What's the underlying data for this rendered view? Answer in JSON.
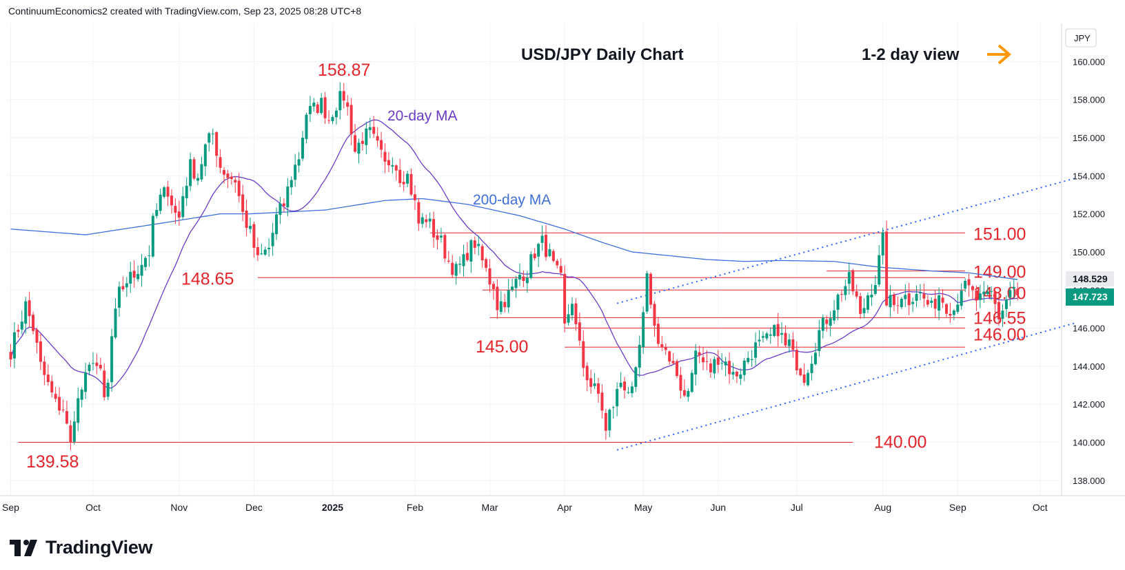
{
  "header": {
    "credit": "ContinuumEconomics2 created with TradingView.com, Sep 23, 2025 08:28 UTC+8"
  },
  "brand": {
    "name": "TradingView"
  },
  "chart_data": {
    "type": "candlestick",
    "title": "USD/JPY Daily Chart",
    "view_label": "1-2 day view",
    "currency_label": "JPY",
    "last_price": "147.723",
    "ma200_value": "148.529",
    "y_ticks": [
      "160.000",
      "158.000",
      "156.000",
      "154.000",
      "152.000",
      "150.000",
      "148.000",
      "146.000",
      "144.000",
      "142.000",
      "140.000",
      "138.000"
    ],
    "ylim": [
      137.2,
      162.0
    ],
    "x_ticks": [
      {
        "label": "Sep",
        "i": 0
      },
      {
        "label": "Oct",
        "i": 22
      },
      {
        "label": "Nov",
        "i": 45
      },
      {
        "label": "Dec",
        "i": 65
      },
      {
        "label": "2025",
        "i": 86,
        "bold": true
      },
      {
        "label": "Feb",
        "i": 108
      },
      {
        "label": "Mar",
        "i": 128
      },
      {
        "label": "Apr",
        "i": 148
      },
      {
        "label": "May",
        "i": 169
      },
      {
        "label": "Jun",
        "i": 189
      },
      {
        "label": "Jul",
        "i": 210
      },
      {
        "label": "Aug",
        "i": 233
      },
      {
        "label": "Sep",
        "i": 253
      },
      {
        "label": "Oct",
        "i": 275
      }
    ],
    "price_keys": [
      [
        0,
        144.8
      ],
      [
        2,
        146.0
      ],
      [
        4,
        147.2
      ],
      [
        6,
        146.0
      ],
      [
        8,
        144.0
      ],
      [
        10,
        143.0
      ],
      [
        12,
        142.0
      ],
      [
        14,
        141.8
      ],
      [
        16,
        139.8
      ],
      [
        17,
        141.5
      ],
      [
        19,
        142.8
      ],
      [
        21,
        143.8
      ],
      [
        22,
        144.5
      ],
      [
        24,
        143.5
      ],
      [
        25,
        142.2
      ],
      [
        26,
        143.0
      ],
      [
        27,
        145.5
      ],
      [
        29,
        147.8
      ],
      [
        31,
        148.5
      ],
      [
        33,
        148.8
      ],
      [
        35,
        149.5
      ],
      [
        37,
        150.0
      ],
      [
        38,
        151.5
      ],
      [
        40,
        152.8
      ],
      [
        42,
        153.3
      ],
      [
        44,
        152.0
      ],
      [
        45,
        151.8
      ],
      [
        46,
        153.0
      ],
      [
        48,
        154.5
      ],
      [
        50,
        154.0
      ],
      [
        52,
        155.5
      ],
      [
        54,
        156.2
      ],
      [
        56,
        154.5
      ],
      [
        58,
        154.0
      ],
      [
        60,
        153.8
      ],
      [
        62,
        152.0
      ],
      [
        64,
        151.0
      ],
      [
        66,
        149.5
      ],
      [
        67,
        149.8
      ],
      [
        69,
        150.2
      ],
      [
        71,
        151.8
      ],
      [
        73,
        152.5
      ],
      [
        75,
        154.0
      ],
      [
        77,
        155.0
      ],
      [
        79,
        157.3
      ],
      [
        81,
        157.5
      ],
      [
        83,
        157.8
      ],
      [
        85,
        157.0
      ],
      [
        87,
        157.8
      ],
      [
        89,
        158.2
      ],
      [
        90,
        157.5
      ],
      [
        91,
        156.5
      ],
      [
        92,
        155.3
      ],
      [
        94,
        156.0
      ],
      [
        96,
        156.2
      ],
      [
        98,
        155.5
      ],
      [
        100,
        154.5
      ],
      [
        102,
        155.0
      ],
      [
        104,
        154.0
      ],
      [
        106,
        154.0
      ],
      [
        108,
        152.5
      ],
      [
        109,
        151.5
      ],
      [
        111,
        151.8
      ],
      [
        113,
        151.0
      ],
      [
        115,
        150.5
      ],
      [
        117,
        149.5
      ],
      [
        119,
        149.0
      ],
      [
        121,
        149.5
      ],
      [
        122,
        150.0
      ],
      [
        124,
        150.5
      ],
      [
        126,
        149.5
      ],
      [
        127,
        149.0
      ],
      [
        128,
        148.5
      ],
      [
        129,
        148.3
      ],
      [
        130,
        147.2
      ],
      [
        132,
        147.5
      ],
      [
        134,
        148.0
      ],
      [
        136,
        148.8
      ],
      [
        138,
        149.0
      ],
      [
        140,
        150.0
      ],
      [
        142,
        150.5
      ],
      [
        144,
        149.8
      ],
      [
        145,
        149.2
      ],
      [
        147,
        148.5
      ],
      [
        148,
        146.0
      ],
      [
        149,
        146.8
      ],
      [
        150,
        147.5
      ],
      [
        151,
        146.0
      ],
      [
        152,
        145.0
      ],
      [
        153,
        144.0
      ],
      [
        155,
        143.0
      ],
      [
        157,
        142.5
      ],
      [
        158,
        141.8
      ],
      [
        159,
        140.5
      ],
      [
        160,
        141.5
      ],
      [
        161,
        142.0
      ],
      [
        163,
        143.2
      ],
      [
        165,
        142.8
      ],
      [
        166,
        142.5
      ],
      [
        167,
        143.5
      ],
      [
        168,
        145.0
      ],
      [
        169,
        146.5
      ],
      [
        170,
        148.5
      ],
      [
        171,
        147.5
      ],
      [
        172,
        146.0
      ],
      [
        173,
        145.5
      ],
      [
        174,
        145.0
      ],
      [
        175,
        144.8
      ],
      [
        176,
        144.0
      ],
      [
        178,
        143.5
      ],
      [
        180,
        142.5
      ],
      [
        182,
        143.5
      ],
      [
        183,
        144.8
      ],
      [
        185,
        144.2
      ],
      [
        187,
        143.8
      ],
      [
        189,
        144.5
      ],
      [
        191,
        144.2
      ],
      [
        193,
        143.5
      ],
      [
        195,
        143.8
      ],
      [
        197,
        144.5
      ],
      [
        199,
        145.0
      ],
      [
        201,
        145.2
      ],
      [
        203,
        145.5
      ],
      [
        205,
        146.0
      ],
      [
        206,
        145.5
      ],
      [
        207,
        145.0
      ],
      [
        208,
        145.2
      ],
      [
        209,
        144.5
      ],
      [
        210,
        144.2
      ],
      [
        212,
        143.5
      ],
      [
        214,
        144.5
      ],
      [
        216,
        145.8
      ],
      [
        218,
        146.5
      ],
      [
        220,
        147.2
      ],
      [
        222,
        148.0
      ],
      [
        224,
        148.5
      ],
      [
        225,
        148.0
      ],
      [
        226,
        147.5
      ],
      [
        227,
        146.5
      ],
      [
        229,
        147.8
      ],
      [
        231,
        148.5
      ],
      [
        233,
        150.6
      ],
      [
        234,
        147.5
      ],
      [
        236,
        147.2
      ],
      [
        238,
        147.8
      ],
      [
        240,
        147.5
      ],
      [
        242,
        148.0
      ],
      [
        244,
        147.5
      ],
      [
        246,
        147.0
      ],
      [
        248,
        147.8
      ],
      [
        250,
        147.2
      ],
      [
        252,
        147.0
      ],
      [
        254,
        148.2
      ],
      [
        256,
        148.0
      ],
      [
        258,
        147.5
      ],
      [
        260,
        147.5
      ],
      [
        262,
        147.8
      ],
      [
        264,
        146.6
      ],
      [
        265,
        147.0
      ],
      [
        267,
        148.0
      ],
      [
        268,
        148.1
      ],
      [
        269,
        147.72
      ]
    ],
    "seed": 7,
    "ma_20_label": "20-day MA",
    "ma_200_label": "200-day MA",
    "ma200_keys": [
      [
        0,
        151.2
      ],
      [
        20,
        150.9
      ],
      [
        40,
        151.5
      ],
      [
        56,
        152.0
      ],
      [
        64,
        152.0
      ],
      [
        84,
        152.2
      ],
      [
        100,
        152.7
      ],
      [
        110,
        152.8
      ],
      [
        122,
        152.5
      ],
      [
        136,
        151.9
      ],
      [
        148,
        151.2
      ],
      [
        158,
        150.5
      ],
      [
        166,
        150.0
      ],
      [
        176,
        149.8
      ],
      [
        186,
        149.6
      ],
      [
        196,
        149.5
      ],
      [
        206,
        149.55
      ],
      [
        220,
        149.5
      ],
      [
        232,
        149.2
      ],
      [
        246,
        149.0
      ],
      [
        256,
        148.9
      ],
      [
        269,
        148.55
      ]
    ],
    "levels": [
      {
        "label": "151.00",
        "value": 151.0,
        "from_i": 112
      },
      {
        "label": "149.00",
        "value": 149.0,
        "from_i": 218
      },
      {
        "label": "148.65",
        "value": 148.65,
        "from_i": 66
      },
      {
        "label": "148.00",
        "value": 148.0,
        "from_i": 126
      },
      {
        "label": "146.55",
        "value": 146.55,
        "from_i": 128
      },
      {
        "label": "146.00",
        "value": 146.0,
        "from_i": 148
      },
      {
        "label": "145.00",
        "value": 145.0,
        "from_i": 148
      },
      {
        "label": "140.00",
        "value": 140.0,
        "from_i": 2
      }
    ],
    "annotations": {
      "high_label": "158.87",
      "low_label": "139.58",
      "high_value": 158.87,
      "low_value": 139.58
    },
    "channel": {
      "upper": [
        [
          162,
          147.3
        ],
        [
          285,
          153.9
        ]
      ],
      "lower": [
        [
          162,
          139.6
        ],
        [
          285,
          146.3
        ]
      ]
    },
    "colors": {
      "up": "#089981",
      "down": "#f23645",
      "ma20": "#6a3bc8",
      "ma200": "#3d6fdc",
      "level": "#e3242b",
      "label_red": "#e3242b",
      "arrow": "#ff9800",
      "channel": "#2962ff"
    }
  }
}
